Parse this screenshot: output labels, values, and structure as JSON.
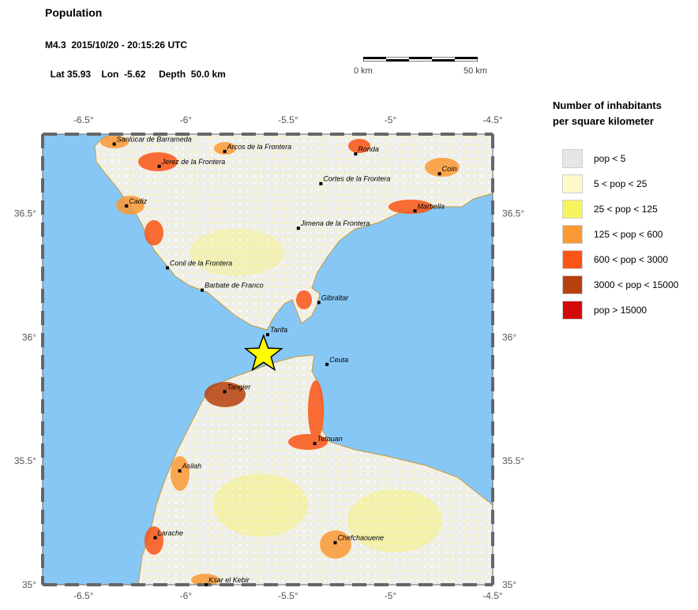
{
  "header": {
    "title": "Population",
    "event_line": "M4.3  2015/10/20 - 20:15:26 UTC",
    "lat_label": "Lat",
    "lat_value": "35.93",
    "lon_label": "Lon",
    "lon_value": "-5.62",
    "depth_label": "Depth",
    "depth_value": "50.0 km"
  },
  "scale": {
    "left_label": "0 km",
    "right_label": "50 km"
  },
  "map": {
    "lon_ticks": [
      "-6.5°",
      "-6°",
      "-5.5°",
      "-5°",
      "-4.5°"
    ],
    "lat_ticks": [
      "36.5°",
      "36°",
      "35.5°",
      "35°"
    ],
    "epicenter": {
      "lat": 35.93,
      "lon": -5.62
    },
    "cities": [
      {
        "name": "Sanlúcar de Barrameda",
        "lat": 36.78,
        "lon": -6.35
      },
      {
        "name": "Arcos de la Frontera",
        "lat": 36.75,
        "lon": -5.81
      },
      {
        "name": "Ronda",
        "lat": 36.74,
        "lon": -5.17
      },
      {
        "name": "Jerez de la Frontera",
        "lat": 36.69,
        "lon": -6.13
      },
      {
        "name": "Coín",
        "lat": 36.66,
        "lon": -4.76
      },
      {
        "name": "Cortes de la Frontera",
        "lat": 36.62,
        "lon": -5.34
      },
      {
        "name": "Cadiz",
        "lat": 36.53,
        "lon": -6.29
      },
      {
        "name": "Marbella",
        "lat": 36.51,
        "lon": -4.88
      },
      {
        "name": "Jimena de la Frontera",
        "lat": 36.44,
        "lon": -5.45
      },
      {
        "name": "Conil de la Frontera",
        "lat": 36.28,
        "lon": -6.09
      },
      {
        "name": "Barbate de Franco",
        "lat": 36.19,
        "lon": -5.92
      },
      {
        "name": "Gibraltar",
        "lat": 36.14,
        "lon": -5.35
      },
      {
        "name": "Tarifa",
        "lat": 36.01,
        "lon": -5.6
      },
      {
        "name": "Ceuta",
        "lat": 35.89,
        "lon": -5.31
      },
      {
        "name": "Tangier",
        "lat": 35.78,
        "lon": -5.81
      },
      {
        "name": "Tetouan",
        "lat": 35.57,
        "lon": -5.37
      },
      {
        "name": "Asilah",
        "lat": 35.46,
        "lon": -6.03
      },
      {
        "name": "Larache",
        "lat": 35.19,
        "lon": -6.15
      },
      {
        "name": "Chefchaouene",
        "lat": 35.17,
        "lon": -5.27
      },
      {
        "name": "Ksar el Kebir",
        "lat": 35.0,
        "lon": -5.9
      }
    ]
  },
  "legend": {
    "title_line1": "Number of inhabitants",
    "title_line2": "per square kilometer",
    "items": [
      {
        "label": "pop < 5",
        "color": "#e6e6e6"
      },
      {
        "label": "5 < pop < 25",
        "color": "#fdfac8"
      },
      {
        "label": "25 < pop < 125",
        "color": "#f7f35f"
      },
      {
        "label": "125 < pop < 600",
        "color": "#fb9935"
      },
      {
        "label": "600 < pop < 3000",
        "color": "#fa5516"
      },
      {
        "label": "3000 < pop < 15000",
        "color": "#b7410e"
      },
      {
        "label": "pop > 15000",
        "color": "#d40a0a"
      }
    ]
  },
  "colors": {
    "water": "#87c7f5",
    "land_low": "#ececea",
    "land_mid": "#fbf3a2",
    "frame": "#666666"
  }
}
